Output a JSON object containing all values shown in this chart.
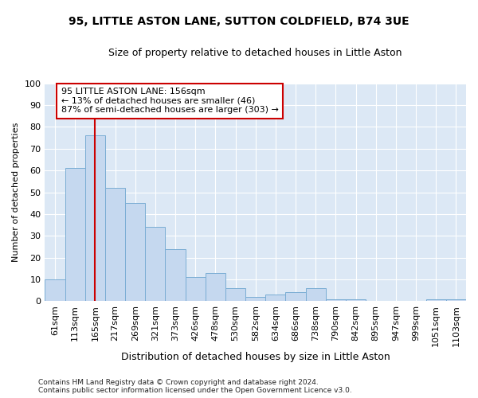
{
  "title": "95, LITTLE ASTON LANE, SUTTON COLDFIELD, B74 3UE",
  "subtitle": "Size of property relative to detached houses in Little Aston",
  "xlabel": "Distribution of detached houses by size in Little Aston",
  "ylabel": "Number of detached properties",
  "bar_color": "#c5d8ef",
  "bar_edge_color": "#7aadd4",
  "bg_color": "#dce8f5",
  "grid_color": "#ffffff",
  "vline_color": "#cc0000",
  "vline_x": 2,
  "annotation_text": "95 LITTLE ASTON LANE: 156sqm\n← 13% of detached houses are smaller (46)\n87% of semi-detached houses are larger (303) →",
  "footnote": "Contains HM Land Registry data © Crown copyright and database right 2024.\nContains public sector information licensed under the Open Government Licence v3.0.",
  "bins": [
    "61sqm",
    "113sqm",
    "165sqm",
    "217sqm",
    "269sqm",
    "321sqm",
    "373sqm",
    "426sqm",
    "478sqm",
    "530sqm",
    "582sqm",
    "634sqm",
    "686sqm",
    "738sqm",
    "790sqm",
    "842sqm",
    "895sqm",
    "947sqm",
    "999sqm",
    "1051sqm",
    "1103sqm"
  ],
  "bar_values": [
    10,
    61,
    76,
    52,
    45,
    34,
    24,
    11,
    13,
    6,
    2,
    3,
    4,
    6,
    1,
    1,
    0,
    0,
    0,
    1,
    1
  ],
  "ylim": [
    0,
    100
  ],
  "yticks": [
    0,
    10,
    20,
    30,
    40,
    50,
    60,
    70,
    80,
    90,
    100
  ],
  "fig_width": 6.0,
  "fig_height": 5.0,
  "dpi": 100
}
